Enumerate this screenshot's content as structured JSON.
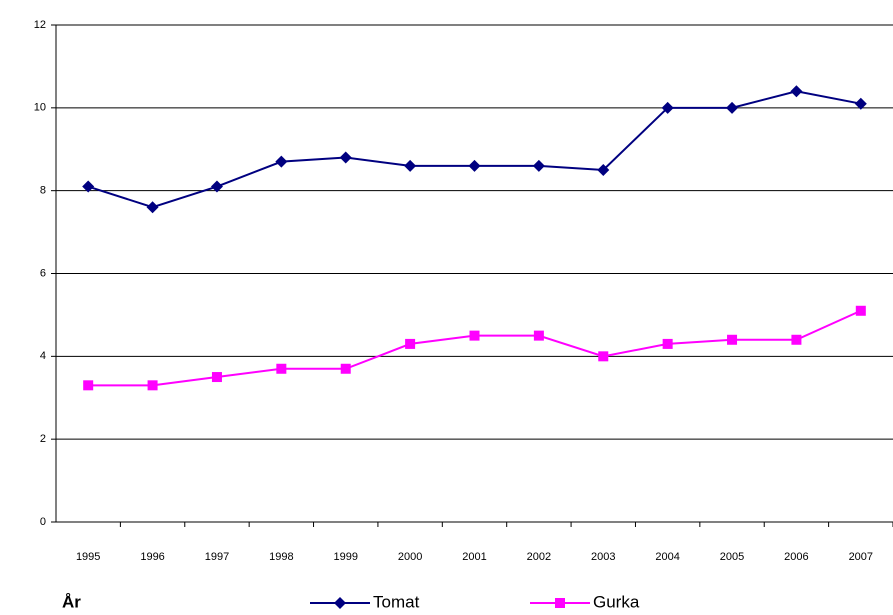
{
  "chart_data": {
    "type": "line",
    "x_label": "År",
    "categories": [
      "1995",
      "1996",
      "1997",
      "1998",
      "1999",
      "2000",
      "2001",
      "2002",
      "2003",
      "2004",
      "2005",
      "2006",
      "2007"
    ],
    "series": [
      {
        "name": "Tomat",
        "color": "#000080",
        "marker": "diamond",
        "values": [
          8.1,
          7.6,
          8.1,
          8.7,
          8.8,
          8.6,
          8.6,
          8.6,
          8.5,
          10.0,
          10.0,
          10.4,
          10.1
        ]
      },
      {
        "name": "Gurka",
        "color": "#ff00ff",
        "marker": "square",
        "values": [
          3.3,
          3.3,
          3.5,
          3.7,
          3.7,
          4.3,
          4.5,
          4.5,
          4.0,
          4.3,
          4.4,
          4.4,
          5.1
        ]
      }
    ],
    "ylim": [
      0,
      12
    ],
    "yticks": [
      0,
      2,
      4,
      6,
      8,
      10,
      12
    ],
    "grid": true,
    "legend": "bottom"
  }
}
